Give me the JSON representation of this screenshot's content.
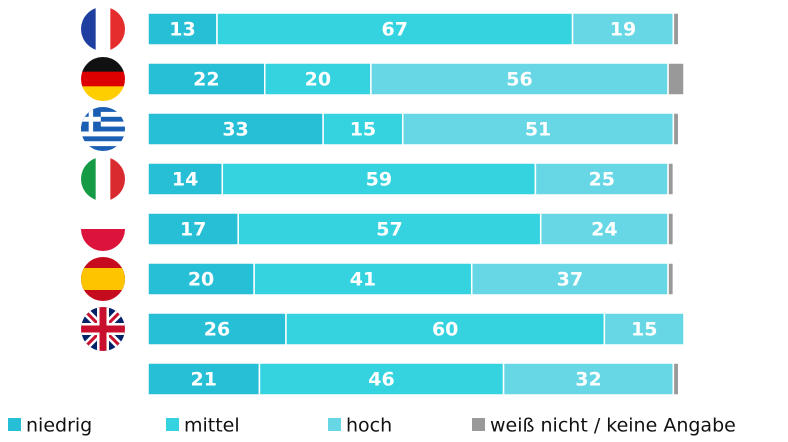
{
  "chart_data": {
    "type": "bar",
    "orientation": "horizontal",
    "stacked": true,
    "categories": [
      null,
      null,
      null,
      null,
      null,
      null,
      null,
      null
    ],
    "series": [
      {
        "name": "niedrig",
        "color": "#27bfd6",
        "values": [
          13,
          22,
          33,
          14,
          17,
          20,
          26,
          21
        ]
      },
      {
        "name": "mittel",
        "color": "#35d3df",
        "values": [
          67,
          20,
          15,
          59,
          57,
          41,
          60,
          46
        ]
      },
      {
        "name": "hoch",
        "color": "#68d7e5",
        "values": [
          19,
          56,
          51,
          25,
          24,
          37,
          15,
          32
        ]
      },
      {
        "name": "weiß nicht / keine Angabe",
        "color": "#999999",
        "values": [
          1,
          3,
          1,
          1,
          1,
          1,
          0,
          1
        ]
      }
    ],
    "labeled_series": [
      0,
      1,
      2
    ],
    "xlim": [
      0,
      101
    ],
    "legend": "bottom"
  }
}
